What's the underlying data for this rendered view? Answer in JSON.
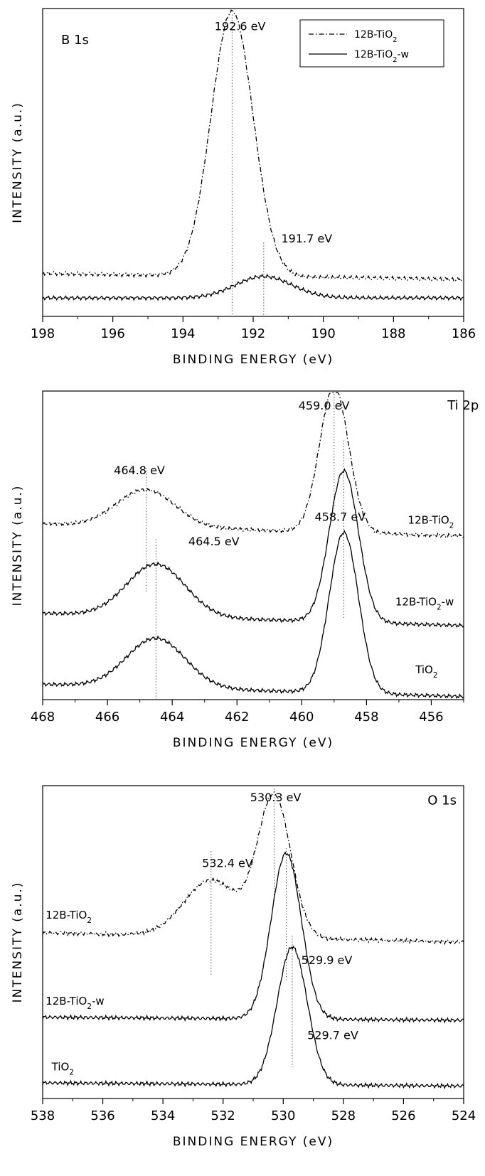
{
  "chart_data": [
    {
      "type": "line",
      "title": "B 1s",
      "xlabel": "BINDING ENERGY (eV)",
      "ylabel": "INTENSITY (a.u.)",
      "xlim": [
        198,
        186
      ],
      "x_reversed": true,
      "y_ticks_shown": false,
      "xticks": [
        198,
        196,
        194,
        192,
        190,
        188,
        186
      ],
      "legend": {
        "position": "top-right",
        "entries": [
          {
            "series": "12B-TiO2",
            "prefix": "12B-TiO",
            "sub": "2",
            "suffix": ""
          },
          {
            "series": "12B-TiO2-w",
            "prefix": "12B-TiO",
            "sub": "2",
            "suffix": "-w"
          }
        ]
      },
      "series": [
        {
          "name": "12B-TiO2",
          "style": "dash-dot",
          "peaks": [
            {
              "center": 192.6,
              "amplitude": 0.86,
              "width": 0.6
            }
          ],
          "baseline": [
            [
              198,
              0.14
            ],
            [
              186,
              0.12
            ]
          ]
        },
        {
          "name": "12B-TiO2-w",
          "style": "solid",
          "peaks": [
            {
              "center": 191.7,
              "amplitude": 0.07,
              "width": 0.8
            }
          ],
          "baseline": [
            [
              198,
              0.06
            ],
            [
              186,
              0.06
            ]
          ]
        }
      ],
      "reference_lines": [
        {
          "x": 192.6,
          "y_top": 0.98
        },
        {
          "x": 191.7,
          "y_top": 0.24
        }
      ],
      "annotations": [
        {
          "text": "192.6 eV",
          "x": 193.1,
          "y": 0.93
        },
        {
          "text": "191.7 eV",
          "x": 191.2,
          "y": 0.24
        }
      ]
    },
    {
      "type": "line",
      "title": "Ti 2p",
      "xlabel": "BINDING ENERGY (eV)",
      "ylabel": "INTENSITY (a.u.)",
      "xlim": [
        468,
        455
      ],
      "x_reversed": true,
      "y_ticks_shown": false,
      "xticks": [
        468,
        466,
        464,
        462,
        460,
        458,
        456
      ],
      "series": [
        {
          "name": "12B-TiO2",
          "style": "dash-dot",
          "peaks": [
            {
              "center": 459.0,
              "amplitude": 0.47,
              "width": 0.45
            },
            {
              "center": 464.8,
              "amplitude": 0.12,
              "width": 0.9
            }
          ],
          "baseline": [
            [
              468,
              0.57
            ],
            [
              455,
              0.53
            ]
          ],
          "label": {
            "prefix": "12B-TiO",
            "sub": "2",
            "suffix": "",
            "x": 455.3,
            "y": 0.57
          }
        },
        {
          "name": "12B-TiO2-w",
          "style": "solid",
          "peaks": [
            {
              "center": 458.7,
              "amplitude": 0.49,
              "width": 0.45
            },
            {
              "center": 464.5,
              "amplitude": 0.17,
              "width": 0.9
            }
          ],
          "baseline": [
            [
              468,
              0.28
            ],
            [
              455,
              0.24
            ]
          ],
          "label": {
            "prefix": "12B-TiO",
            "sub": "2",
            "suffix": "-w",
            "x": 455.3,
            "y": 0.305
          }
        },
        {
          "name": "TiO2",
          "style": "solid",
          "peaks": [
            {
              "center": 458.7,
              "amplitude": 0.52,
              "width": 0.45
            },
            {
              "center": 464.5,
              "amplitude": 0.16,
              "width": 0.9
            }
          ],
          "baseline": [
            [
              468,
              0.05
            ],
            [
              455,
              0.01
            ]
          ],
          "label": {
            "prefix": "TiO",
            "sub": "2",
            "suffix": "",
            "x": 455.8,
            "y": 0.085
          }
        }
      ],
      "reference_lines": [
        {
          "x": 459.0,
          "y_top": 1.0,
          "y_bottom": 0.62
        },
        {
          "x": 464.8,
          "y_top": 0.75,
          "y_bottom": 0.35
        },
        {
          "x": 458.7,
          "y_top": 0.84,
          "y_bottom": 0.26
        },
        {
          "x": 464.5,
          "y_top": 0.52,
          "y_bottom": 0.0
        }
      ],
      "annotations": [
        {
          "text": "459.0 eV",
          "x": 460.1,
          "y": 0.94
        },
        {
          "text": "Ti 2p",
          "x": 455.5,
          "y": 0.94,
          "role": "title"
        },
        {
          "text": "464.8 eV",
          "x": 465.8,
          "y": 0.73
        },
        {
          "text": "464.5 eV",
          "x": 463.5,
          "y": 0.5
        },
        {
          "text": "458.7 eV",
          "x": 459.6,
          "y": 0.58
        }
      ]
    },
    {
      "type": "line",
      "title": "O 1s",
      "xlabel": "BINDING ENERGY (eV)",
      "ylabel": "INTENSITY (a.u.)",
      "xlim": [
        538,
        524
      ],
      "x_reversed": true,
      "y_ticks_shown": false,
      "xticks": [
        538,
        536,
        534,
        532,
        530,
        528,
        526,
        524
      ],
      "series": [
        {
          "name": "12B-TiO2",
          "style": "dash-dot",
          "peaks": [
            {
              "center": 530.3,
              "amplitude": 0.45,
              "width": 0.55
            },
            {
              "center": 532.4,
              "amplitude": 0.18,
              "width": 0.9
            }
          ],
          "baseline": [
            [
              538,
              0.53
            ],
            [
              524,
              0.5
            ]
          ],
          "label": {
            "prefix": "12B-TiO",
            "sub": "2",
            "suffix": "",
            "x": 537.9,
            "y": 0.575
          }
        },
        {
          "name": "12B-TiO2-w",
          "style": "solid",
          "peaks": [
            {
              "center": 529.9,
              "amplitude": 0.53,
              "width": 0.5
            }
          ],
          "baseline": [
            [
              538,
              0.26
            ],
            [
              524,
              0.25
            ]
          ],
          "label": {
            "prefix": "12B-TiO",
            "sub": "2",
            "suffix": "-w",
            "x": 537.9,
            "y": 0.3
          }
        },
        {
          "name": "TiO2",
          "style": "solid",
          "peaks": [
            {
              "center": 529.7,
              "amplitude": 0.44,
              "width": 0.5
            }
          ],
          "baseline": [
            [
              538,
              0.05
            ],
            [
              524,
              0.04
            ]
          ],
          "label": {
            "prefix": "TiO",
            "sub": "2",
            "suffix": "",
            "x": 537.7,
            "y": 0.09
          }
        }
      ],
      "reference_lines": [
        {
          "x": 530.3,
          "y_top": 0.99,
          "y_bottom": 0.63
        },
        {
          "x": 532.4,
          "y_top": 0.79,
          "y_bottom": 0.39
        },
        {
          "x": 529.9,
          "y_top": 0.8,
          "y_bottom": 0.38
        },
        {
          "x": 529.7,
          "y_top": 0.52,
          "y_bottom": 0.1
        }
      ],
      "annotations": [
        {
          "text": "530.3 eV",
          "x": 531.1,
          "y": 0.95
        },
        {
          "text": "O 1s",
          "x": 525.2,
          "y": 0.94,
          "role": "title"
        },
        {
          "text": "532.4 eV",
          "x": 532.7,
          "y": 0.74
        },
        {
          "text": "529.9 eV",
          "x": 529.4,
          "y": 0.43
        },
        {
          "text": "529.7 eV",
          "x": 529.2,
          "y": 0.19
        }
      ]
    }
  ]
}
